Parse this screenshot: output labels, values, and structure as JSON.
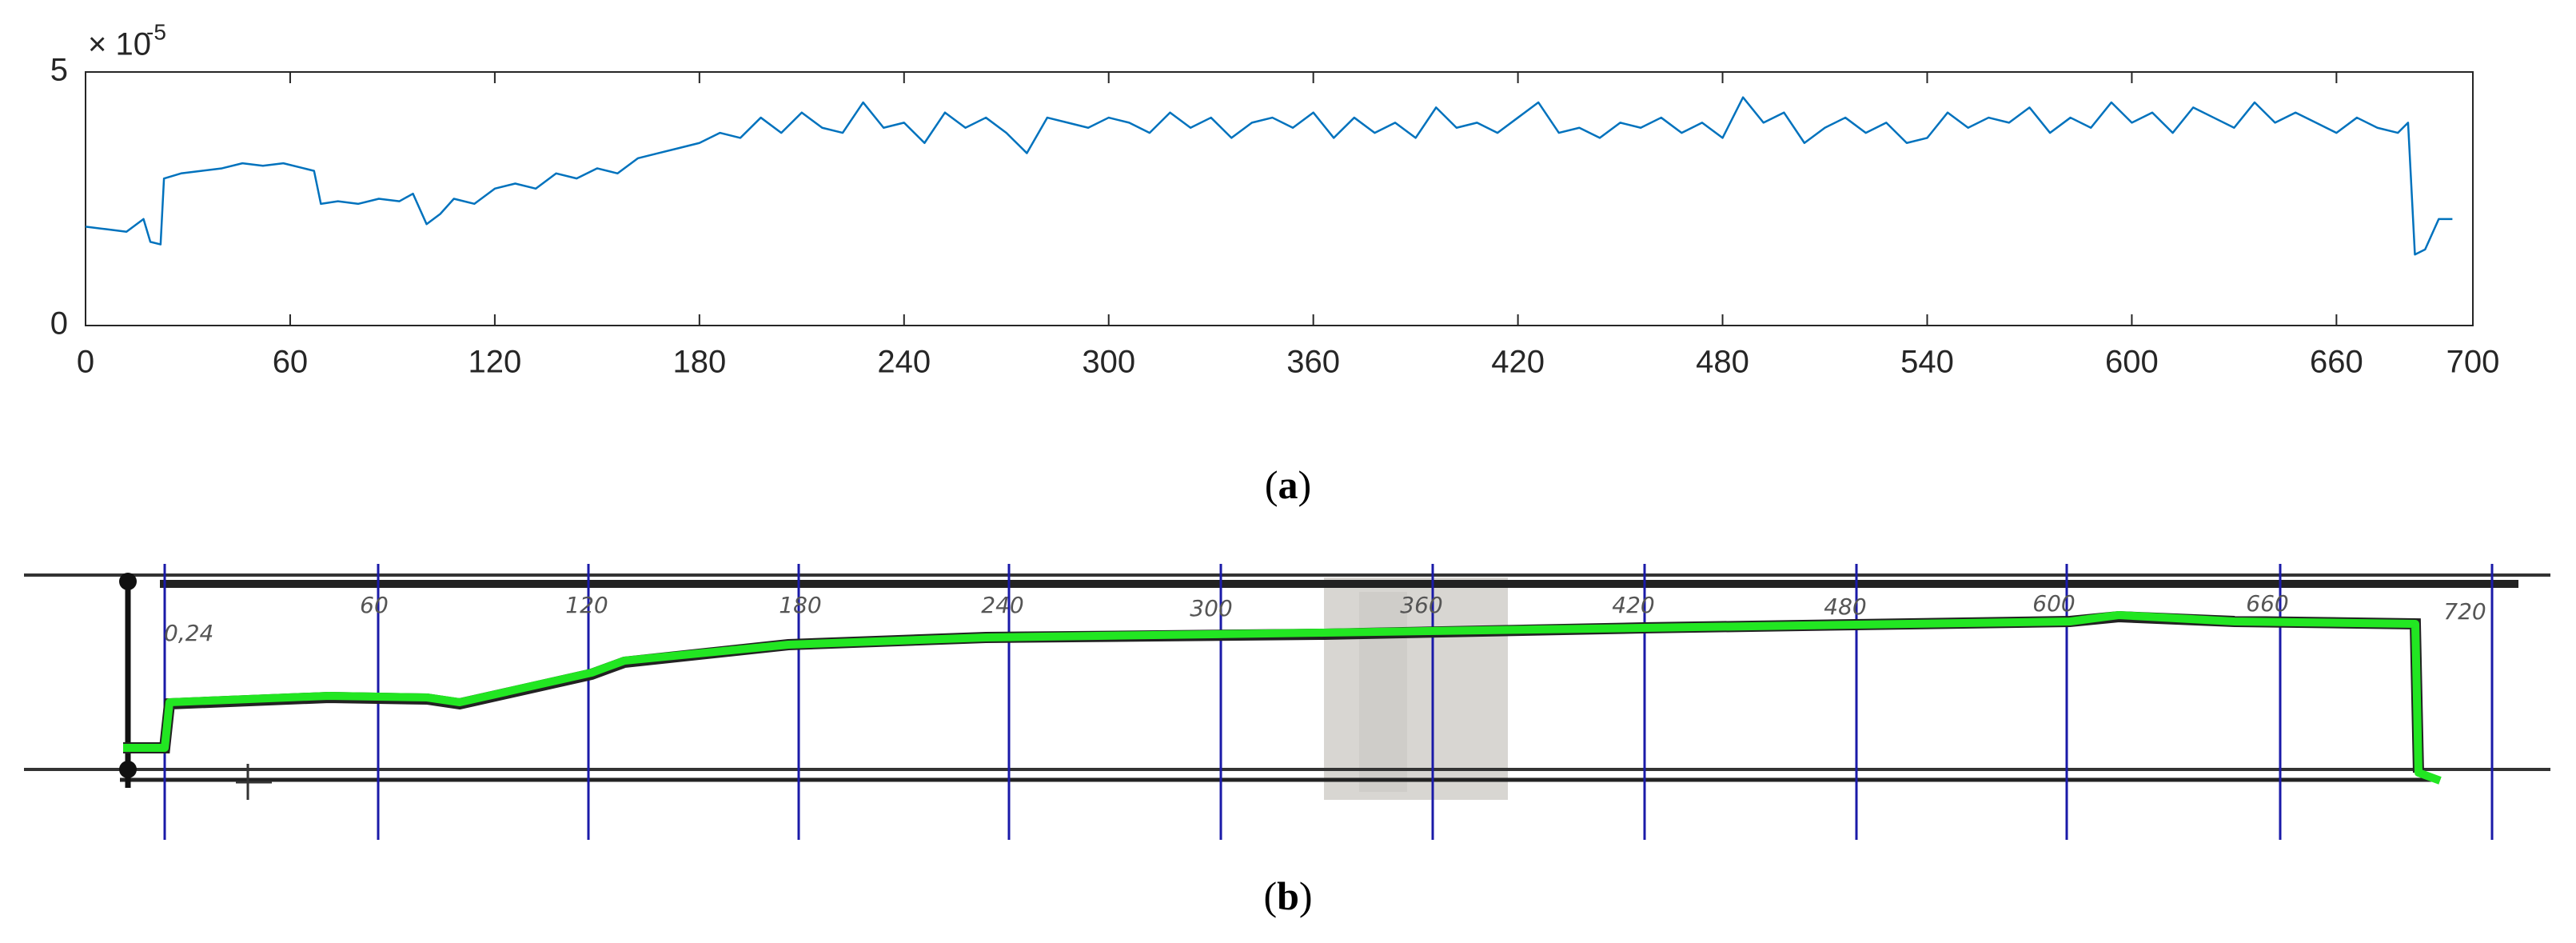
{
  "chart_data": {
    "type": "line",
    "y_multiplier": "× 10",
    "y_exponent": "-5",
    "x": [
      0,
      6,
      12,
      17,
      19,
      22,
      23,
      28,
      34,
      40,
      46,
      52,
      58,
      64,
      67,
      69,
      74,
      80,
      86,
      92,
      96,
      100,
      104,
      108,
      114,
      120,
      126,
      132,
      138,
      144,
      150,
      156,
      162,
      168,
      174,
      180,
      186,
      192,
      198,
      204,
      210,
      216,
      222,
      228,
      234,
      240,
      246,
      252,
      258,
      264,
      270,
      276,
      282,
      288,
      294,
      300,
      306,
      312,
      318,
      324,
      330,
      336,
      342,
      348,
      354,
      360,
      366,
      372,
      378,
      384,
      390,
      396,
      402,
      408,
      414,
      420,
      426,
      432,
      438,
      444,
      450,
      456,
      462,
      468,
      474,
      480,
      486,
      492,
      498,
      504,
      510,
      516,
      522,
      528,
      534,
      540,
      546,
      552,
      558,
      564,
      570,
      576,
      582,
      588,
      594,
      600,
      606,
      612,
      618,
      624,
      630,
      636,
      642,
      648,
      654,
      660,
      666,
      672,
      678,
      681,
      683,
      686,
      690,
      694
    ],
    "series": [
      {
        "color": "#0072bd",
        "values": [
          1.95,
          1.9,
          1.85,
          2.1,
          1.65,
          1.6,
          2.9,
          3.0,
          3.05,
          3.1,
          3.2,
          3.15,
          3.2,
          3.1,
          3.05,
          2.4,
          2.45,
          2.4,
          2.5,
          2.45,
          2.6,
          2.0,
          2.2,
          2.5,
          2.4,
          2.7,
          2.8,
          2.7,
          3.0,
          2.9,
          3.1,
          3.0,
          3.3,
          3.4,
          3.5,
          3.6,
          3.8,
          3.7,
          4.1,
          3.8,
          4.2,
          3.9,
          3.8,
          4.4,
          3.9,
          4.0,
          3.6,
          4.2,
          3.9,
          4.1,
          3.8,
          3.4,
          4.1,
          4.0,
          3.9,
          4.1,
          4.0,
          3.8,
          4.2,
          3.9,
          4.1,
          3.7,
          4.0,
          4.1,
          3.9,
          4.2,
          3.7,
          4.1,
          3.8,
          4.0,
          3.7,
          4.3,
          3.9,
          4.0,
          3.8,
          4.1,
          4.4,
          3.8,
          3.9,
          3.7,
          4.0,
          3.9,
          4.1,
          3.8,
          4.0,
          3.7,
          4.5,
          4.0,
          4.2,
          3.6,
          3.9,
          4.1,
          3.8,
          4.0,
          3.6,
          3.7,
          4.2,
          3.9,
          4.1,
          4.0,
          4.3,
          3.8,
          4.1,
          3.9,
          4.4,
          4.0,
          4.2,
          3.8,
          4.3,
          4.1,
          3.9,
          4.4,
          4.0,
          4.2,
          4.0,
          3.8,
          4.1,
          3.9,
          3.8,
          4.0,
          1.4,
          1.5,
          2.1,
          2.1
        ]
      }
    ],
    "xlim": [
      0,
      700
    ],
    "xticks": [
      0,
      60,
      120,
      180,
      240,
      300,
      360,
      420,
      480,
      540,
      600,
      660,
      700
    ],
    "ylim": [
      0,
      5
    ],
    "yticks": [
      0,
      5
    ]
  },
  "panel_b": {
    "labels": [
      "60",
      "120",
      "180",
      "240",
      "300",
      "360",
      "420",
      "480",
      "600",
      "660",
      "720"
    ],
    "scale_label": "0,24"
  },
  "captions": {
    "a": {
      "open": "(",
      "letter": "a",
      "close": ")"
    },
    "b": {
      "open": "(",
      "letter": "b",
      "close": ")"
    }
  }
}
